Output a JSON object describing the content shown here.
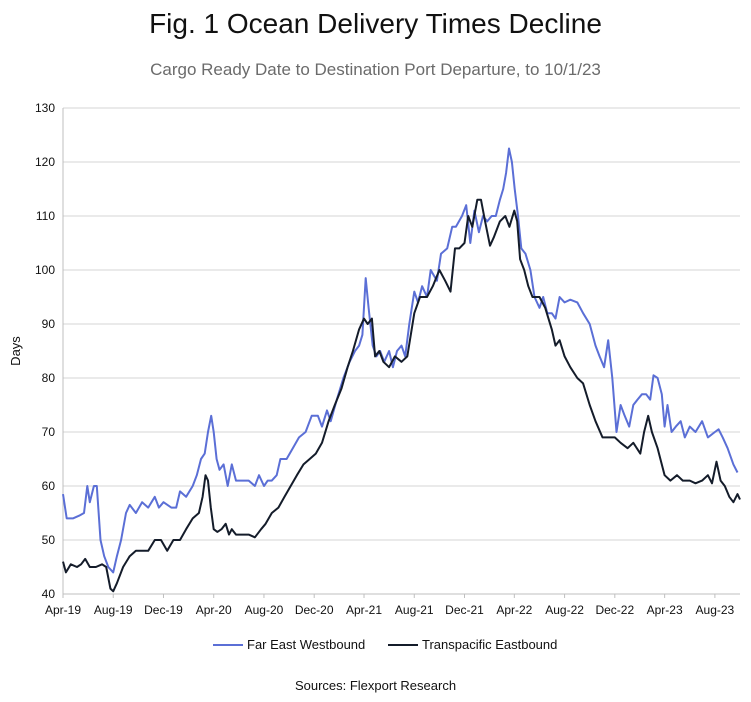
{
  "chart_data": {
    "type": "line",
    "title": "Fig. 1 Ocean Delivery Times Decline",
    "subtitle": "Cargo Ready Date to Destination Port Departure, to 10/1/23",
    "ylabel": "Days",
    "xlabel": "",
    "ylim": [
      40,
      130
    ],
    "yticks": [
      40,
      50,
      60,
      70,
      80,
      90,
      100,
      110,
      120,
      130
    ],
    "xlim": [
      "2019-04-01",
      "2023-10-01"
    ],
    "xtick_labels": [
      "Apr-19",
      "Aug-19",
      "Dec-19",
      "Apr-20",
      "Aug-20",
      "Dec-20",
      "Apr-21",
      "Aug-21",
      "Dec-21",
      "Apr-22",
      "Aug-22",
      "Dec-22",
      "Apr-23",
      "Aug-23"
    ],
    "xtick_dates": [
      "2019-04-01",
      "2019-08-01",
      "2019-12-01",
      "2020-04-01",
      "2020-08-01",
      "2020-12-01",
      "2021-04-01",
      "2021-08-01",
      "2021-12-01",
      "2022-04-01",
      "2022-08-01",
      "2022-12-01",
      "2023-04-01",
      "2023-08-01"
    ],
    "grid": true,
    "legend_position": "bottom",
    "series": [
      {
        "name": "Far East Westbound",
        "color": "#5b6fd6",
        "points": [
          [
            "2019-04-01",
            58.5
          ],
          [
            "2019-04-10",
            54
          ],
          [
            "2019-04-25",
            54
          ],
          [
            "2019-05-10",
            54.5
          ],
          [
            "2019-05-22",
            55
          ],
          [
            "2019-05-30",
            60
          ],
          [
            "2019-06-05",
            57
          ],
          [
            "2019-06-15",
            60
          ],
          [
            "2019-06-22",
            60
          ],
          [
            "2019-07-01",
            50
          ],
          [
            "2019-07-10",
            47
          ],
          [
            "2019-07-20",
            45
          ],
          [
            "2019-08-01",
            44
          ],
          [
            "2019-08-10",
            47
          ],
          [
            "2019-08-20",
            50
          ],
          [
            "2019-09-01",
            55
          ],
          [
            "2019-09-10",
            56.5
          ],
          [
            "2019-09-25",
            55
          ],
          [
            "2019-10-10",
            57
          ],
          [
            "2019-10-25",
            56
          ],
          [
            "2019-11-10",
            58
          ],
          [
            "2019-11-20",
            56
          ],
          [
            "2019-12-01",
            57
          ],
          [
            "2019-12-20",
            56
          ],
          [
            "2020-01-01",
            56
          ],
          [
            "2020-01-10",
            59
          ],
          [
            "2020-01-25",
            58
          ],
          [
            "2020-02-10",
            60
          ],
          [
            "2020-02-20",
            62
          ],
          [
            "2020-03-01",
            65
          ],
          [
            "2020-03-10",
            66
          ],
          [
            "2020-03-18",
            70
          ],
          [
            "2020-03-26",
            73
          ],
          [
            "2020-04-01",
            70
          ],
          [
            "2020-04-08",
            65
          ],
          [
            "2020-04-15",
            63
          ],
          [
            "2020-04-25",
            64
          ],
          [
            "2020-05-05",
            60
          ],
          [
            "2020-05-15",
            64
          ],
          [
            "2020-05-25",
            61
          ],
          [
            "2020-06-10",
            61
          ],
          [
            "2020-06-25",
            61
          ],
          [
            "2020-07-10",
            60
          ],
          [
            "2020-07-20",
            62
          ],
          [
            "2020-08-01",
            60
          ],
          [
            "2020-08-10",
            61
          ],
          [
            "2020-08-20",
            61
          ],
          [
            "2020-09-01",
            62
          ],
          [
            "2020-09-10",
            65
          ],
          [
            "2020-09-25",
            65
          ],
          [
            "2020-10-10",
            67
          ],
          [
            "2020-10-25",
            69
          ],
          [
            "2020-11-10",
            70
          ],
          [
            "2020-11-25",
            73
          ],
          [
            "2020-12-10",
            73
          ],
          [
            "2020-12-20",
            71
          ],
          [
            "2021-01-01",
            74
          ],
          [
            "2021-01-10",
            72
          ],
          [
            "2021-01-25",
            76
          ],
          [
            "2021-02-10",
            80
          ],
          [
            "2021-02-25",
            83
          ],
          [
            "2021-03-10",
            85
          ],
          [
            "2021-03-20",
            86
          ],
          [
            "2021-03-28",
            88
          ],
          [
            "2021-04-05",
            98.5
          ],
          [
            "2021-04-12",
            93
          ],
          [
            "2021-04-22",
            86
          ],
          [
            "2021-05-01",
            84
          ],
          [
            "2021-05-10",
            85
          ],
          [
            "2021-05-20",
            83
          ],
          [
            "2021-06-01",
            85
          ],
          [
            "2021-06-10",
            82
          ],
          [
            "2021-06-20",
            85
          ],
          [
            "2021-07-01",
            86
          ],
          [
            "2021-07-10",
            84
          ],
          [
            "2021-07-20",
            90
          ],
          [
            "2021-08-01",
            96
          ],
          [
            "2021-08-10",
            94
          ],
          [
            "2021-08-20",
            97
          ],
          [
            "2021-09-01",
            95
          ],
          [
            "2021-09-10",
            100
          ],
          [
            "2021-09-25",
            98
          ],
          [
            "2021-10-05",
            103
          ],
          [
            "2021-10-20",
            104
          ],
          [
            "2021-11-01",
            108
          ],
          [
            "2021-11-10",
            108
          ],
          [
            "2021-11-25",
            110
          ],
          [
            "2021-12-05",
            112
          ],
          [
            "2021-12-15",
            105
          ],
          [
            "2021-12-25",
            111
          ],
          [
            "2022-01-05",
            107
          ],
          [
            "2022-01-15",
            110
          ],
          [
            "2022-01-25",
            109
          ],
          [
            "2022-02-05",
            110
          ],
          [
            "2022-02-15",
            110
          ],
          [
            "2022-02-25",
            113
          ],
          [
            "2022-03-05",
            115
          ],
          [
            "2022-03-12",
            118
          ],
          [
            "2022-03-19",
            122.5
          ],
          [
            "2022-03-26",
            120
          ],
          [
            "2022-04-02",
            115
          ],
          [
            "2022-04-10",
            110
          ],
          [
            "2022-04-18",
            104
          ],
          [
            "2022-04-28",
            103
          ],
          [
            "2022-05-10",
            100
          ],
          [
            "2022-05-20",
            95
          ],
          [
            "2022-06-01",
            93
          ],
          [
            "2022-06-10",
            95
          ],
          [
            "2022-06-20",
            92
          ],
          [
            "2022-07-01",
            92
          ],
          [
            "2022-07-10",
            91
          ],
          [
            "2022-07-20",
            95
          ],
          [
            "2022-08-01",
            94
          ],
          [
            "2022-08-15",
            94.5
          ],
          [
            "2022-09-01",
            94
          ],
          [
            "2022-09-15",
            92
          ],
          [
            "2022-10-01",
            90
          ],
          [
            "2022-10-15",
            86
          ],
          [
            "2022-10-25",
            84
          ],
          [
            "2022-11-05",
            82
          ],
          [
            "2022-11-15",
            87
          ],
          [
            "2022-11-25",
            80
          ],
          [
            "2022-12-05",
            70
          ],
          [
            "2022-12-15",
            75
          ],
          [
            "2022-12-25",
            73
          ],
          [
            "2023-01-05",
            71
          ],
          [
            "2023-01-15",
            75
          ],
          [
            "2023-01-25",
            76
          ],
          [
            "2023-02-05",
            77
          ],
          [
            "2023-02-15",
            77
          ],
          [
            "2023-02-25",
            76
          ],
          [
            "2023-03-05",
            80.5
          ],
          [
            "2023-03-15",
            80
          ],
          [
            "2023-03-25",
            77
          ],
          [
            "2023-04-01",
            71
          ],
          [
            "2023-04-08",
            75
          ],
          [
            "2023-04-18",
            70
          ],
          [
            "2023-04-28",
            71
          ],
          [
            "2023-05-10",
            72
          ],
          [
            "2023-05-20",
            69
          ],
          [
            "2023-06-01",
            71
          ],
          [
            "2023-06-15",
            70
          ],
          [
            "2023-07-01",
            72
          ],
          [
            "2023-07-15",
            69
          ],
          [
            "2023-08-01",
            70
          ],
          [
            "2023-08-10",
            70.5
          ],
          [
            "2023-08-20",
            69
          ],
          [
            "2023-09-01",
            67
          ],
          [
            "2023-09-15",
            64
          ],
          [
            "2023-09-25",
            62.5
          ]
        ]
      },
      {
        "name": "Transpacific Eastbound",
        "color": "#141c2a",
        "points": [
          [
            "2019-04-01",
            46
          ],
          [
            "2019-04-08",
            44
          ],
          [
            "2019-04-20",
            45.5
          ],
          [
            "2019-05-05",
            45
          ],
          [
            "2019-05-15",
            45.5
          ],
          [
            "2019-05-25",
            46.5
          ],
          [
            "2019-06-05",
            45
          ],
          [
            "2019-06-20",
            45
          ],
          [
            "2019-07-05",
            45.5
          ],
          [
            "2019-07-15",
            45
          ],
          [
            "2019-07-25",
            41
          ],
          [
            "2019-08-01",
            40.5
          ],
          [
            "2019-08-10",
            42
          ],
          [
            "2019-08-25",
            45
          ],
          [
            "2019-09-10",
            47
          ],
          [
            "2019-09-25",
            48
          ],
          [
            "2019-10-10",
            48
          ],
          [
            "2019-10-25",
            48
          ],
          [
            "2019-11-10",
            50
          ],
          [
            "2019-11-25",
            50
          ],
          [
            "2019-12-10",
            48
          ],
          [
            "2019-12-25",
            50
          ],
          [
            "2020-01-10",
            50
          ],
          [
            "2020-01-25",
            52
          ],
          [
            "2020-02-10",
            54
          ],
          [
            "2020-02-25",
            55
          ],
          [
            "2020-03-05",
            58
          ],
          [
            "2020-03-12",
            62
          ],
          [
            "2020-03-18",
            61
          ],
          [
            "2020-03-25",
            56
          ],
          [
            "2020-04-01",
            52
          ],
          [
            "2020-04-10",
            51.5
          ],
          [
            "2020-04-20",
            52
          ],
          [
            "2020-04-30",
            53
          ],
          [
            "2020-05-08",
            51
          ],
          [
            "2020-05-15",
            52
          ],
          [
            "2020-05-25",
            51
          ],
          [
            "2020-06-10",
            51
          ],
          [
            "2020-06-25",
            51
          ],
          [
            "2020-07-10",
            50.5
          ],
          [
            "2020-07-25",
            52
          ],
          [
            "2020-08-05",
            53
          ],
          [
            "2020-08-20",
            55
          ],
          [
            "2020-09-05",
            56
          ],
          [
            "2020-09-20",
            58
          ],
          [
            "2020-10-05",
            60
          ],
          [
            "2020-10-20",
            62
          ],
          [
            "2020-11-05",
            64
          ],
          [
            "2020-11-20",
            65
          ],
          [
            "2020-12-05",
            66
          ],
          [
            "2020-12-20",
            68
          ],
          [
            "2021-01-05",
            72
          ],
          [
            "2021-01-20",
            75
          ],
          [
            "2021-02-05",
            78
          ],
          [
            "2021-02-20",
            82
          ],
          [
            "2021-03-05",
            85
          ],
          [
            "2021-03-20",
            89
          ],
          [
            "2021-04-01",
            91
          ],
          [
            "2021-04-10",
            90
          ],
          [
            "2021-04-20",
            91
          ],
          [
            "2021-04-28",
            84
          ],
          [
            "2021-05-08",
            85
          ],
          [
            "2021-05-18",
            83
          ],
          [
            "2021-06-01",
            82
          ],
          [
            "2021-06-15",
            84
          ],
          [
            "2021-07-01",
            83
          ],
          [
            "2021-07-15",
            84
          ],
          [
            "2021-08-01",
            92
          ],
          [
            "2021-08-15",
            95
          ],
          [
            "2021-09-01",
            95
          ],
          [
            "2021-09-15",
            97
          ],
          [
            "2021-10-01",
            100
          ],
          [
            "2021-10-15",
            98
          ],
          [
            "2021-10-28",
            96
          ],
          [
            "2021-11-08",
            104
          ],
          [
            "2021-11-18",
            104
          ],
          [
            "2021-12-01",
            105
          ],
          [
            "2021-12-10",
            110
          ],
          [
            "2021-12-20",
            108
          ],
          [
            "2022-01-01",
            113
          ],
          [
            "2022-01-10",
            113
          ],
          [
            "2022-01-20",
            109
          ],
          [
            "2022-02-01",
            104.5
          ],
          [
            "2022-02-10",
            106
          ],
          [
            "2022-02-25",
            109
          ],
          [
            "2022-03-10",
            110
          ],
          [
            "2022-03-20",
            108
          ],
          [
            "2022-04-01",
            111
          ],
          [
            "2022-04-08",
            109
          ],
          [
            "2022-04-15",
            102
          ],
          [
            "2022-04-25",
            100
          ],
          [
            "2022-05-05",
            97
          ],
          [
            "2022-05-15",
            95
          ],
          [
            "2022-06-01",
            95
          ],
          [
            "2022-06-15",
            93
          ],
          [
            "2022-07-01",
            89
          ],
          [
            "2022-07-10",
            86
          ],
          [
            "2022-07-20",
            87
          ],
          [
            "2022-08-01",
            84
          ],
          [
            "2022-08-15",
            82
          ],
          [
            "2022-09-01",
            80
          ],
          [
            "2022-09-15",
            79
          ],
          [
            "2022-10-01",
            75
          ],
          [
            "2022-10-15",
            72
          ],
          [
            "2022-11-01",
            69
          ],
          [
            "2022-11-15",
            69
          ],
          [
            "2022-12-01",
            69
          ],
          [
            "2022-12-15",
            68
          ],
          [
            "2023-01-01",
            67
          ],
          [
            "2023-01-15",
            68
          ],
          [
            "2023-02-01",
            66
          ],
          [
            "2023-02-10",
            70
          ],
          [
            "2023-02-20",
            73
          ],
          [
            "2023-03-01",
            70
          ],
          [
            "2023-03-15",
            67
          ],
          [
            "2023-04-01",
            62
          ],
          [
            "2023-04-15",
            61
          ],
          [
            "2023-05-01",
            62
          ],
          [
            "2023-05-15",
            61
          ],
          [
            "2023-06-01",
            61
          ],
          [
            "2023-06-15",
            60.5
          ],
          [
            "2023-07-01",
            61
          ],
          [
            "2023-07-15",
            62
          ],
          [
            "2023-07-25",
            60.5
          ],
          [
            "2023-08-05",
            64.5
          ],
          [
            "2023-08-15",
            61
          ],
          [
            "2023-08-25",
            60
          ],
          [
            "2023-09-05",
            58
          ],
          [
            "2023-09-15",
            57
          ],
          [
            "2023-09-25",
            58.5
          ],
          [
            "2023-10-01",
            57.5
          ]
        ]
      }
    ],
    "source": "Sources: Flexport Research"
  }
}
